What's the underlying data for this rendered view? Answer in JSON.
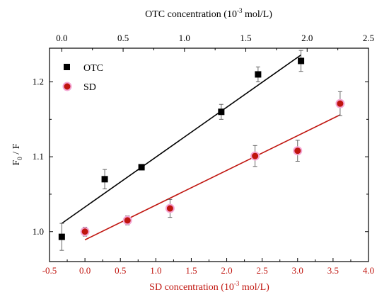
{
  "chart_data": {
    "type": "scatter",
    "top_axis": {
      "title_main": "OTC concentration (10",
      "title_sup": "-3",
      "title_tail": " mol/L)",
      "range": [
        -0.1,
        2.5
      ],
      "ticks": [
        0.0,
        0.5,
        1.0,
        1.5,
        2.0,
        2.5
      ],
      "tick_labels": [
        "0.0",
        "0.5",
        "1.0",
        "1.5",
        "2.0",
        "2.5"
      ]
    },
    "bottom_axis": {
      "title_main": "SD concentration (10",
      "title_sup": "-3",
      "title_tail": " mol/L)",
      "range": [
        -0.5,
        4.0
      ],
      "ticks": [
        -0.5,
        0.0,
        0.5,
        1.0,
        1.5,
        2.0,
        2.5,
        3.0,
        3.5,
        4.0
      ],
      "tick_labels": [
        "-0.5",
        "0.0",
        "0.5",
        "1.0",
        "1.5",
        "2.0",
        "2.5",
        "3.0",
        "3.5",
        "4.0"
      ],
      "color": "#c0150f"
    },
    "y_axis": {
      "title_main": "F",
      "title_sub": "0",
      "title_tail": " / F",
      "range": [
        0.96,
        1.245
      ],
      "ticks": [
        1.0,
        1.1,
        1.2
      ],
      "tick_labels": [
        "1.0",
        "1.1",
        "1.2"
      ]
    },
    "series": [
      {
        "name": "OTC",
        "axis": "top",
        "marker": "square",
        "color": "#000000",
        "x": [
          0.0,
          0.35,
          0.65,
          1.3,
          1.6,
          1.95
        ],
        "y": [
          0.993,
          1.07,
          1.086,
          1.16,
          1.21,
          1.228
        ],
        "err": [
          0.018,
          0.013,
          0.0,
          0.01,
          0.01,
          0.014
        ],
        "fit": {
          "x": [
            0.0,
            1.95
          ],
          "y": [
            1.011,
            1.236
          ]
        }
      },
      {
        "name": "SD",
        "axis": "bottom",
        "marker": "circle",
        "color": "#c0150f",
        "x": [
          0.0,
          0.6,
          1.2,
          2.4,
          3.0,
          3.6
        ],
        "y": [
          1.0,
          1.015,
          1.031,
          1.101,
          1.108,
          1.171
        ],
        "err": [
          0.006,
          0.006,
          0.012,
          0.014,
          0.014,
          0.016
        ],
        "fit": {
          "x": [
            0.0,
            3.6
          ],
          "y": [
            0.989,
            1.156
          ]
        }
      }
    ],
    "legend_position": "top-left",
    "grid": false
  }
}
